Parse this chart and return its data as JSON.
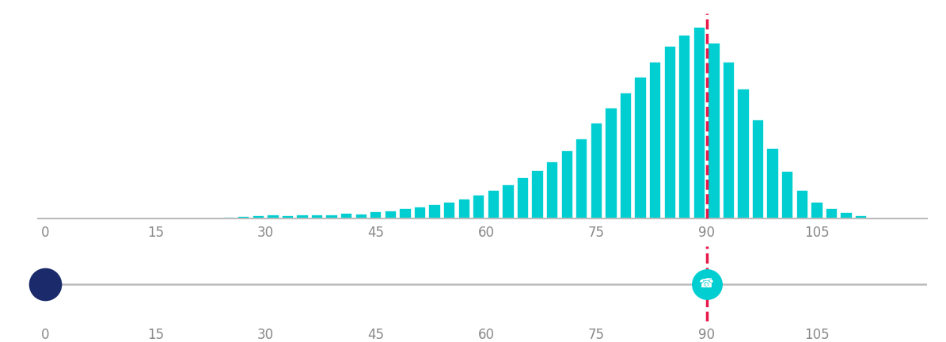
{
  "bar_centers": [
    21,
    23,
    25,
    27,
    29,
    31,
    33,
    35,
    37,
    39,
    41,
    43,
    45,
    47,
    49,
    51,
    53,
    55,
    57,
    59,
    61,
    63,
    65,
    67,
    69,
    71,
    73,
    75,
    77,
    79,
    81,
    83,
    85,
    87,
    89,
    91,
    93,
    95,
    97,
    99,
    101,
    103,
    105,
    107,
    109,
    111
  ],
  "bar_heights": [
    0.5,
    0.8,
    1.2,
    1.5,
    1.8,
    2.2,
    2.0,
    2.3,
    2.1,
    2.4,
    3.0,
    2.7,
    3.8,
    4.5,
    5.5,
    6.5,
    7.5,
    8.8,
    10.5,
    12.5,
    15.0,
    18.0,
    21.5,
    25.5,
    30.0,
    35.5,
    42.0,
    50.0,
    58.0,
    66.0,
    74.0,
    82.0,
    90.0,
    96.0,
    100.0,
    92.0,
    82.0,
    68.0,
    52.0,
    37.0,
    25.0,
    15.0,
    9.0,
    5.5,
    3.5,
    2.0
  ],
  "bar_color": "#00CED1",
  "bar_width": 1.65,
  "vline_x": 90,
  "vline_color": "#E8194B",
  "vline_style": "--",
  "vline_lw": 2.5,
  "xticks": [
    0,
    15,
    30,
    45,
    60,
    75,
    90,
    105
  ],
  "xlim": [
    -1,
    120
  ],
  "ylim": [
    0,
    107
  ],
  "axis_color": "#bbbbbb",
  "bg_color": "#ffffff",
  "dot_left_color": "#1B2A6B",
  "dot_right_color": "#00CED1",
  "dot_left_x": 0,
  "dot_right_x": 90,
  "tick_color": "#888888",
  "tick_fontsize": 12
}
